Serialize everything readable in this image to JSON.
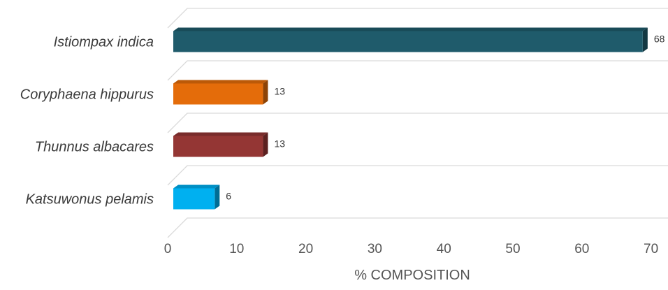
{
  "chart_data": {
    "type": "bar",
    "orientation": "horizontal",
    "style": "3d",
    "categories": [
      "Istiompax indica",
      "Coryphaena hippurus",
      "Thunnus albacares",
      "Katsuwonus pelamis"
    ],
    "values": [
      68,
      13,
      13,
      6
    ],
    "data_labels": [
      "68",
      "13",
      "13",
      "6"
    ],
    "colors": [
      "#1F5B6B",
      "#E46C0A",
      "#943634",
      "#00B0F0"
    ],
    "xlabel": "% COMPOSITION",
    "ylabel": "",
    "xlim": [
      0,
      70
    ],
    "xticks": [
      "0",
      "10",
      "20",
      "30",
      "40",
      "50",
      "60",
      "70"
    ],
    "grid": true,
    "legend": "none"
  }
}
